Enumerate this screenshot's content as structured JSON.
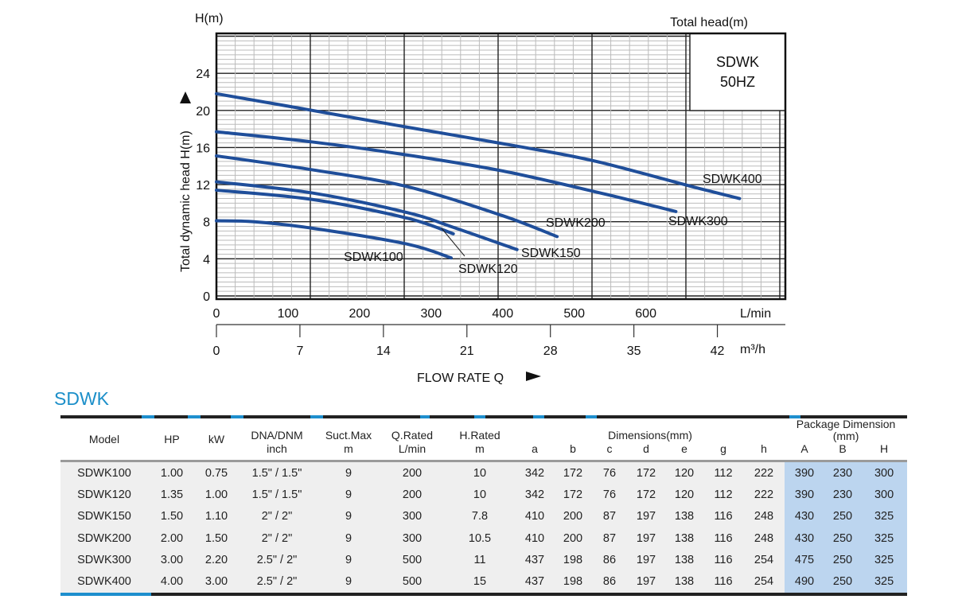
{
  "chart_data": {
    "type": "line",
    "title": "Total head(m)",
    "inset": [
      "SDWK",
      "50HZ"
    ],
    "ylabel": "Total dynamic head H(m)",
    "ylabel_top": "H(m)",
    "xlabel": "FLOW RATE Q",
    "x_unit": "L/min",
    "x2_unit": "m³/h",
    "ylim": [
      0,
      28.3
    ],
    "xlim": [
      0,
      795
    ],
    "y_ticks": [
      0,
      4,
      8,
      12,
      16,
      20,
      24
    ],
    "x_ticks": [
      0,
      100,
      200,
      300,
      400,
      500,
      600
    ],
    "x2_ticks": [
      0,
      7,
      14,
      21,
      28,
      35,
      42
    ],
    "grid": true,
    "series": [
      {
        "name": "SDWK400",
        "x": [
          0,
          134,
          266,
          431,
          531,
          664,
          731
        ],
        "y": [
          21.8,
          20.0,
          18.2,
          16.0,
          14.5,
          11.8,
          10.5
        ]
      },
      {
        "name": "SDWK300",
        "x": [
          0,
          134,
          266,
          398,
          531,
          642
        ],
        "y": [
          17.7,
          16.6,
          15.2,
          13.5,
          11.2,
          9.1
        ]
      },
      {
        "name": "SDWK200",
        "x": [
          0,
          134,
          266,
          398,
          476
        ],
        "y": [
          15.1,
          13.6,
          11.8,
          8.7,
          6.4
        ]
      },
      {
        "name": "SDWK150",
        "x": [
          0,
          134,
          266,
          331,
          420
        ],
        "y": [
          12.3,
          11.1,
          9.0,
          7.4,
          5.0
        ]
      },
      {
        "name": "SDWK120",
        "x": [
          0,
          134,
          266,
          331
        ],
        "y": [
          11.4,
          10.4,
          8.4,
          6.7
        ]
      },
      {
        "name": "SDWK100",
        "x": [
          0,
          53,
          134,
          266,
          328
        ],
        "y": [
          8.1,
          8.0,
          7.3,
          5.6,
          4.1
        ]
      }
    ],
    "line_color": "#1f4e9a"
  },
  "table": {
    "title": "SDWK",
    "headers": {
      "model": "Model",
      "hp": "HP",
      "kw": "kW",
      "dna": [
        "DNA/DNM",
        "inch"
      ],
      "suct": [
        "Suct.Max",
        "m"
      ],
      "q": [
        "Q.Rated",
        "L/min"
      ],
      "h": [
        "H.Rated",
        "m"
      ],
      "dimensions": "Dimensions(mm)",
      "dim_cols": [
        "a",
        "b",
        "c",
        "d",
        "e",
        "g",
        "h"
      ],
      "package": "Package Dimension",
      "package_unit": "(mm)",
      "pkg_cols": [
        "A",
        "B",
        "H"
      ]
    },
    "rows": [
      [
        "SDWK100",
        "1.00",
        "0.75",
        "1.5\" / 1.5\"",
        "9",
        "200",
        "10",
        "342",
        "172",
        "76",
        "172",
        "120",
        "112",
        "222",
        "390",
        "230",
        "300"
      ],
      [
        "SDWK120",
        "1.35",
        "1.00",
        "1.5\" / 1.5\"",
        "9",
        "200",
        "10",
        "342",
        "172",
        "76",
        "172",
        "120",
        "112",
        "222",
        "390",
        "230",
        "300"
      ],
      [
        "SDWK150",
        "1.50",
        "1.10",
        "2\" / 2\"",
        "9",
        "300",
        "7.8",
        "410",
        "200",
        "87",
        "197",
        "138",
        "116",
        "248",
        "430",
        "250",
        "325"
      ],
      [
        "SDWK200",
        "2.00",
        "1.50",
        "2\" / 2\"",
        "9",
        "300",
        "10.5",
        "410",
        "200",
        "87",
        "197",
        "138",
        "116",
        "248",
        "430",
        "250",
        "325"
      ],
      [
        "SDWK300",
        "3.00",
        "2.20",
        "2.5\" / 2\"",
        "9",
        "500",
        "11",
        "437",
        "198",
        "86",
        "197",
        "138",
        "116",
        "254",
        "475",
        "250",
        "325"
      ],
      [
        "SDWK400",
        "4.00",
        "3.00",
        "2.5\" / 2\"",
        "9",
        "500",
        "15",
        "437",
        "198",
        "86",
        "197",
        "138",
        "116",
        "254",
        "490",
        "250",
        "325"
      ]
    ],
    "accent_color": "#1e8fce",
    "package_bg": "#bcd5ef"
  }
}
